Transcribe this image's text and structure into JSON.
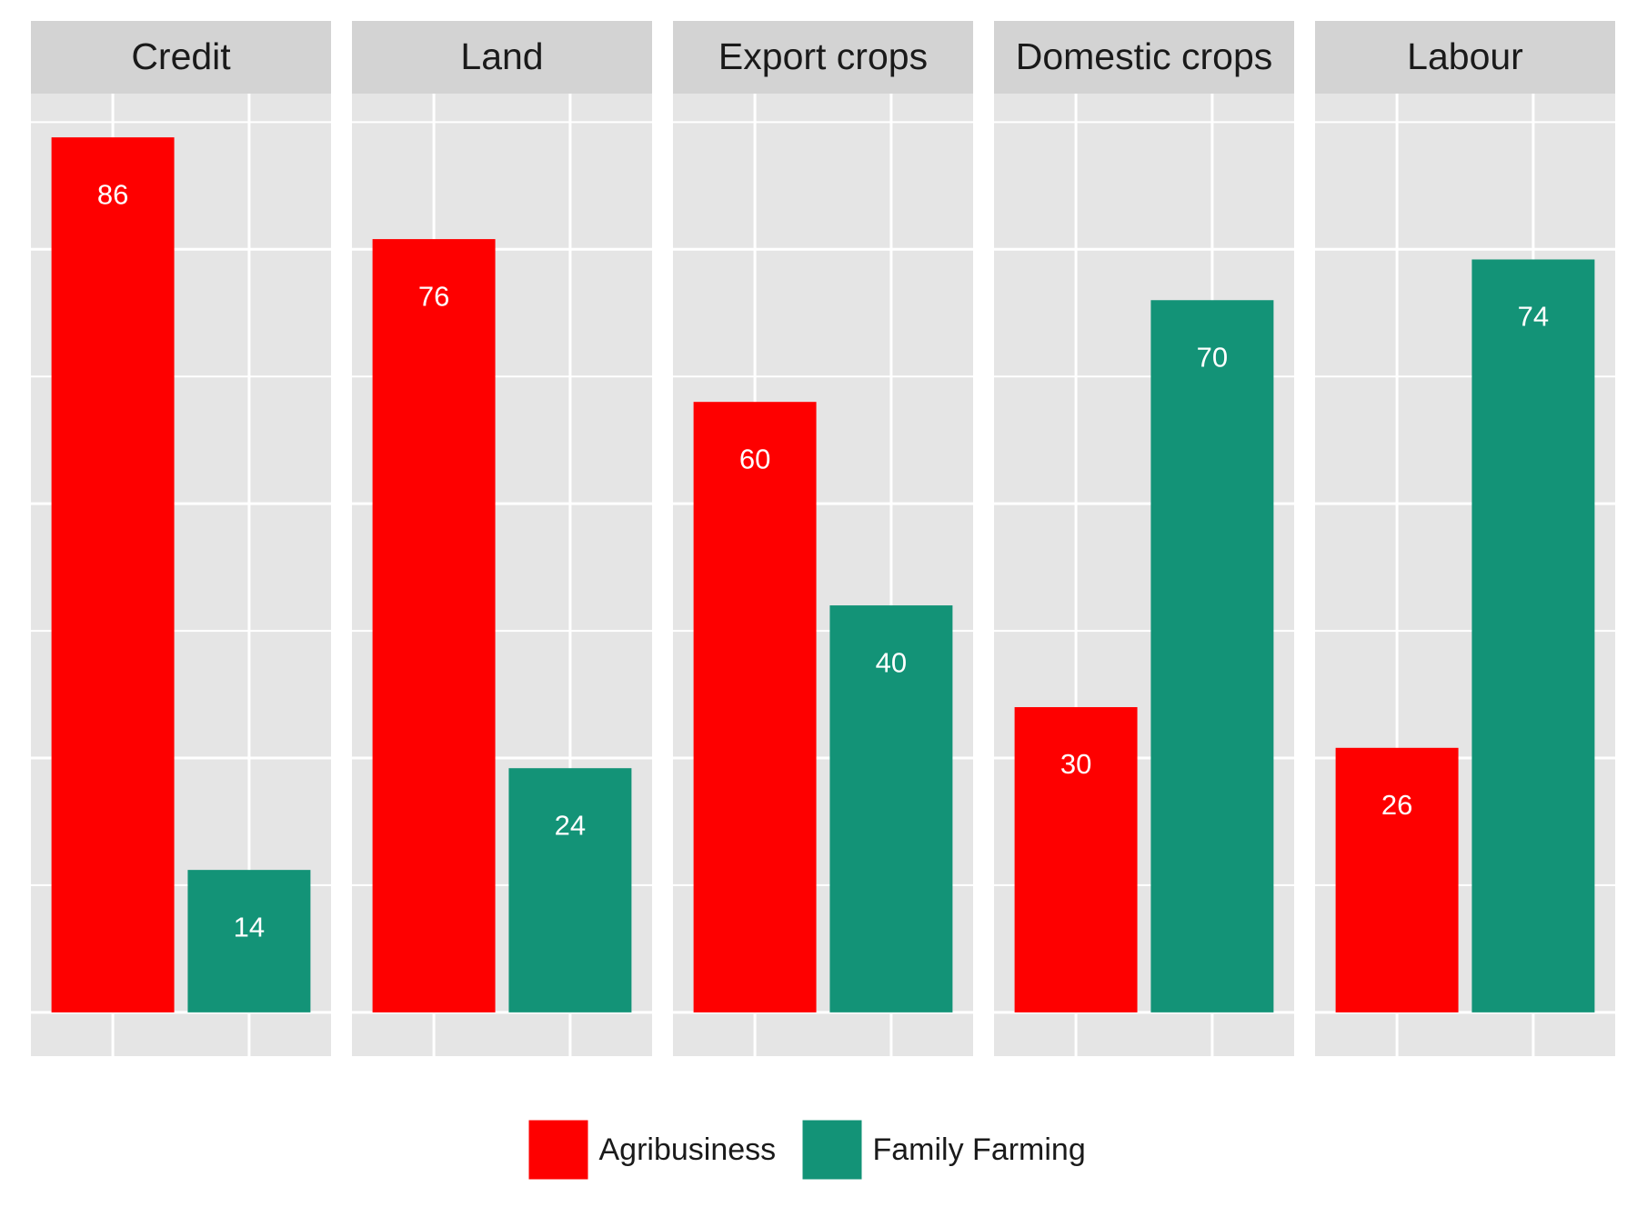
{
  "chart_data": {
    "type": "bar",
    "categories": [
      "Credit",
      "Land",
      "Export crops",
      "Domestic crops",
      "Labour"
    ],
    "series": [
      {
        "name": "Agribusiness",
        "color": "#fe0000",
        "values": [
          86,
          76,
          60,
          30,
          26
        ]
      },
      {
        "name": "Family Farming",
        "color": "#139377",
        "values": [
          14,
          24,
          40,
          70,
          74
        ]
      }
    ],
    "ylim": [
      -4.3,
      90.3
    ],
    "yticks": [
      0,
      25,
      50,
      75
    ],
    "yminorticks": [
      12.5,
      37.5,
      62.5,
      87.5
    ],
    "grid": true,
    "legend": "bottom"
  }
}
